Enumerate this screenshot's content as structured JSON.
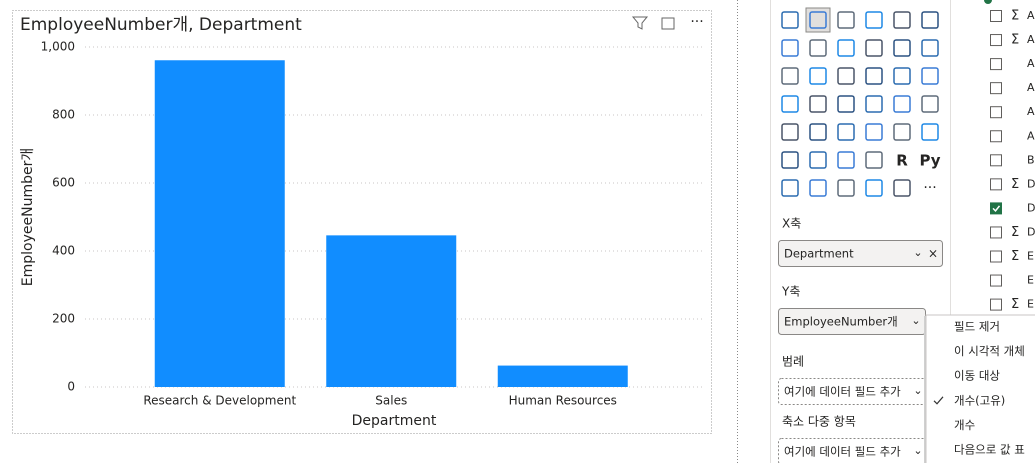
{
  "chart_data": {
    "type": "bar",
    "title": "EmployeeNumber개, Department",
    "x_label": "Department",
    "y_label": "EmployeeNumber개",
    "categories": [
      "Research & Development",
      "Sales",
      "Human Resources"
    ],
    "values": [
      961,
      446,
      63
    ],
    "color": "#118dff",
    "ylim": [
      0,
      1000
    ],
    "yticks": [
      0,
      200,
      400,
      600,
      800,
      {
        "value": 1000,
        "label": "1,000"
      }
    ],
    "grid": true
  },
  "icon_texts": [
    "R",
    "Py",
    "···"
  ],
  "wells": [
    {
      "title": "X축",
      "field": "Department"
    },
    {
      "title": "Y축",
      "field": "EmployeeNumber개"
    },
    {
      "title": "범례",
      "field": "여기에 데이터 필드 추가"
    },
    {
      "title": "축소 다중 항목",
      "field": "여기에 데이터 필드 추가"
    }
  ],
  "menu": [
    {
      "label": "필드 제거",
      "checked": false
    },
    {
      "label": "이 시각적 개체",
      "checked": false
    },
    {
      "label": "이동 대상",
      "checked": false
    },
    {
      "label": "개수(고유)",
      "checked": true
    },
    {
      "label": "개수",
      "checked": false
    },
    {
      "label": "다음으로 값 표",
      "checked": false
    }
  ],
  "fields": [
    {
      "label": "A",
      "sigma": true,
      "checked": false
    },
    {
      "label": "A",
      "sigma": true,
      "checked": false
    },
    {
      "label": "A",
      "sigma": false,
      "checked": false
    },
    {
      "label": "A",
      "sigma": false,
      "checked": false
    },
    {
      "label": "A",
      "sigma": false,
      "checked": false
    },
    {
      "label": "A",
      "sigma": false,
      "checked": false
    },
    {
      "label": "B",
      "sigma": false,
      "checked": false
    },
    {
      "label": "D",
      "sigma": true,
      "checked": false
    },
    {
      "label": "D",
      "sigma": false,
      "checked": true
    },
    {
      "label": "D",
      "sigma": true,
      "checked": false
    },
    {
      "label": "E",
      "sigma": true,
      "checked": false
    },
    {
      "label": "E",
      "sigma": false,
      "checked": false
    },
    {
      "label": "E",
      "sigma": true,
      "checked": false
    }
  ]
}
